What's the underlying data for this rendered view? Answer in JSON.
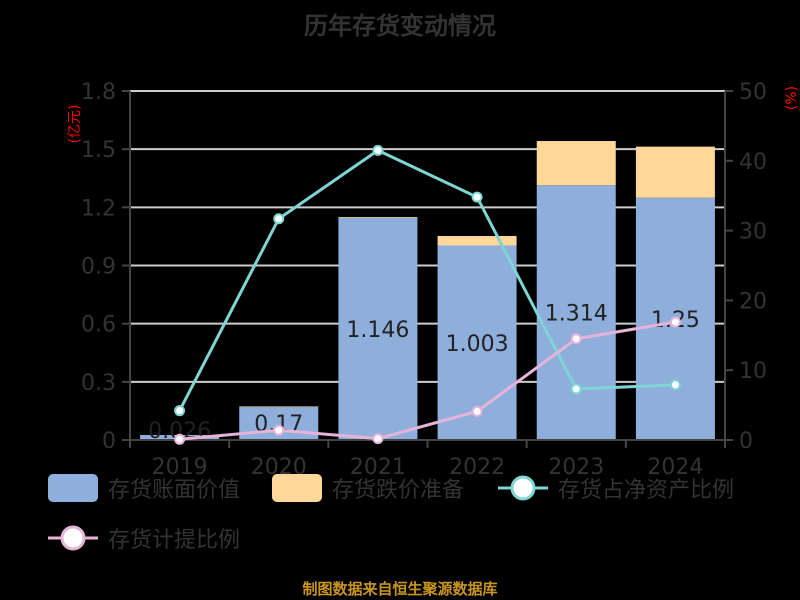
{
  "title": "历年存货变动情况",
  "footer": "制图数据来自恒生聚源数据库",
  "axes": {
    "left_unit": "(亿元)",
    "right_unit": "(%)",
    "left_ticks": [
      "0",
      "0.3",
      "0.6",
      "0.9",
      "1.2",
      "1.5",
      "1.8"
    ],
    "right_ticks": [
      "0",
      "10",
      "20",
      "30",
      "40",
      "50"
    ]
  },
  "legend": {
    "items": [
      {
        "label": "存货账面价值",
        "color": "#8eaedb",
        "type": "bar"
      },
      {
        "label": "存货跌价准备",
        "color": "#ffd899",
        "type": "bar"
      },
      {
        "label": "存货占净资产比例",
        "color": "#7fd4d4",
        "type": "line"
      },
      {
        "label": "存货计提比例",
        "color": "#e6b3d9",
        "type": "line"
      }
    ]
  },
  "colors": {
    "book_value": "#8eaedb",
    "impairment": "#ffd899",
    "net_asset_ratio": "#7fd4d4",
    "provision_ratio": "#e6b3d9",
    "axis_text": "#333333",
    "grid": "#cccccc",
    "unit_label": "#ff0000",
    "footer": "#c8951e"
  },
  "chart_data": {
    "type": "bar",
    "title": "历年存货变动情况",
    "categories": [
      "2019",
      "2020",
      "2021",
      "2022",
      "2023",
      "2024"
    ],
    "series": [
      {
        "name": "存货账面价值",
        "type": "bar",
        "stack": "inventory",
        "axis": "left",
        "values": [
          0.026,
          0.17,
          1.146,
          1.003,
          1.314,
          1.25
        ],
        "labels": [
          "0.026",
          "0.17",
          "1.146",
          "1.003",
          "1.314",
          "1.25"
        ]
      },
      {
        "name": "存货跌价准备",
        "type": "bar",
        "stack": "inventory",
        "axis": "left",
        "values": [
          0.0,
          0.003,
          0.004,
          0.049,
          0.228,
          0.263
        ]
      },
      {
        "name": "存货占净资产比例",
        "type": "line",
        "axis": "right",
        "values": [
          4.2,
          31.7,
          41.5,
          34.8,
          7.3,
          7.9
        ]
      },
      {
        "name": "存货计提比例",
        "type": "line",
        "axis": "right",
        "values": [
          0.1,
          1.4,
          0.2,
          4.1,
          14.5,
          16.9
        ]
      }
    ],
    "xlabel": "",
    "ylabel": "(亿元)",
    "y2label": "(%)",
    "ylim": [
      0,
      1.8
    ],
    "y2lim": [
      0,
      50
    ],
    "grid": true,
    "legend_position": "bottom"
  }
}
